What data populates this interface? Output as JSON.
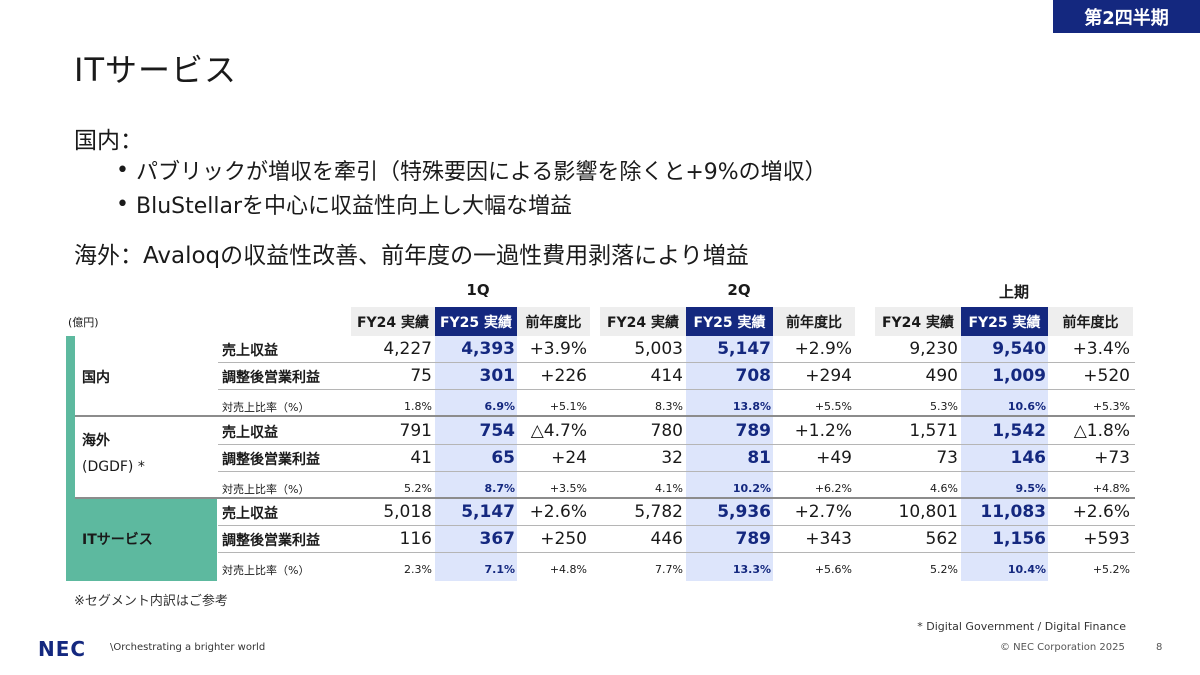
{
  "badge": "第2四半期",
  "title": "ITサービス",
  "domestic": {
    "heading": "国内：",
    "bullets": [
      "パブリックが増収を牽引（特殊要因による影響を除くと+9%の増収）",
      "BluStellarを中心に収益性向上し大幅な増益"
    ]
  },
  "overseas_line": "海外：Avaloqの収益性改善、前年度の一過性費用剥落により増益",
  "table": {
    "unit": "(億円)",
    "periods": [
      "1Q",
      "2Q",
      "上期"
    ],
    "col_headers": [
      "FY24 実績",
      "FY25 実績",
      "前年度比"
    ],
    "segments": [
      {
        "label": "国内",
        "label2": ""
      },
      {
        "label": "海外",
        "label2": "(DGDF) *"
      },
      {
        "label": "ITサービス",
        "label2": ""
      }
    ],
    "row_labels": [
      "売上収益",
      "調整後営業利益",
      "対売上比率（%）"
    ],
    "rows": [
      [
        "4,227",
        "4,393",
        "+3.9%",
        "5,003",
        "5,147",
        "+2.9%",
        "9,230",
        "9,540",
        "+3.4%"
      ],
      [
        "75",
        "301",
        "+226",
        "414",
        "708",
        "+294",
        "490",
        "1,009",
        "+520"
      ],
      [
        "1.8%",
        "6.9%",
        "+5.1%",
        "8.3%",
        "13.8%",
        "+5.5%",
        "5.3%",
        "10.6%",
        "+5.3%"
      ],
      [
        "791",
        "754",
        "△4.7%",
        "780",
        "789",
        "+1.2%",
        "1,571",
        "1,542",
        "△1.8%"
      ],
      [
        "41",
        "65",
        "+24",
        "32",
        "81",
        "+49",
        "73",
        "146",
        "+73"
      ],
      [
        "5.2%",
        "8.7%",
        "+3.5%",
        "4.1%",
        "10.2%",
        "+6.2%",
        "4.6%",
        "9.5%",
        "+4.8%"
      ],
      [
        "5,018",
        "5,147",
        "+2.6%",
        "5,782",
        "5,936",
        "+2.7%",
        "10,801",
        "11,083",
        "+2.6%"
      ],
      [
        "116",
        "367",
        "+250",
        "446",
        "789",
        "+343",
        "562",
        "1,156",
        "+593"
      ],
      [
        "2.3%",
        "7.1%",
        "+4.8%",
        "7.7%",
        "13.3%",
        "+5.6%",
        "5.2%",
        "10.4%",
        "+5.2%"
      ]
    ]
  },
  "note_left": "※セグメント内訳はご参考",
  "note_right": "* Digital Government / Digital Finance",
  "footer": {
    "logo": "NEC",
    "tagline": "\\Orchestrating a brighter world",
    "copyright": "© NEC Corporation 2025",
    "page": "8"
  }
}
